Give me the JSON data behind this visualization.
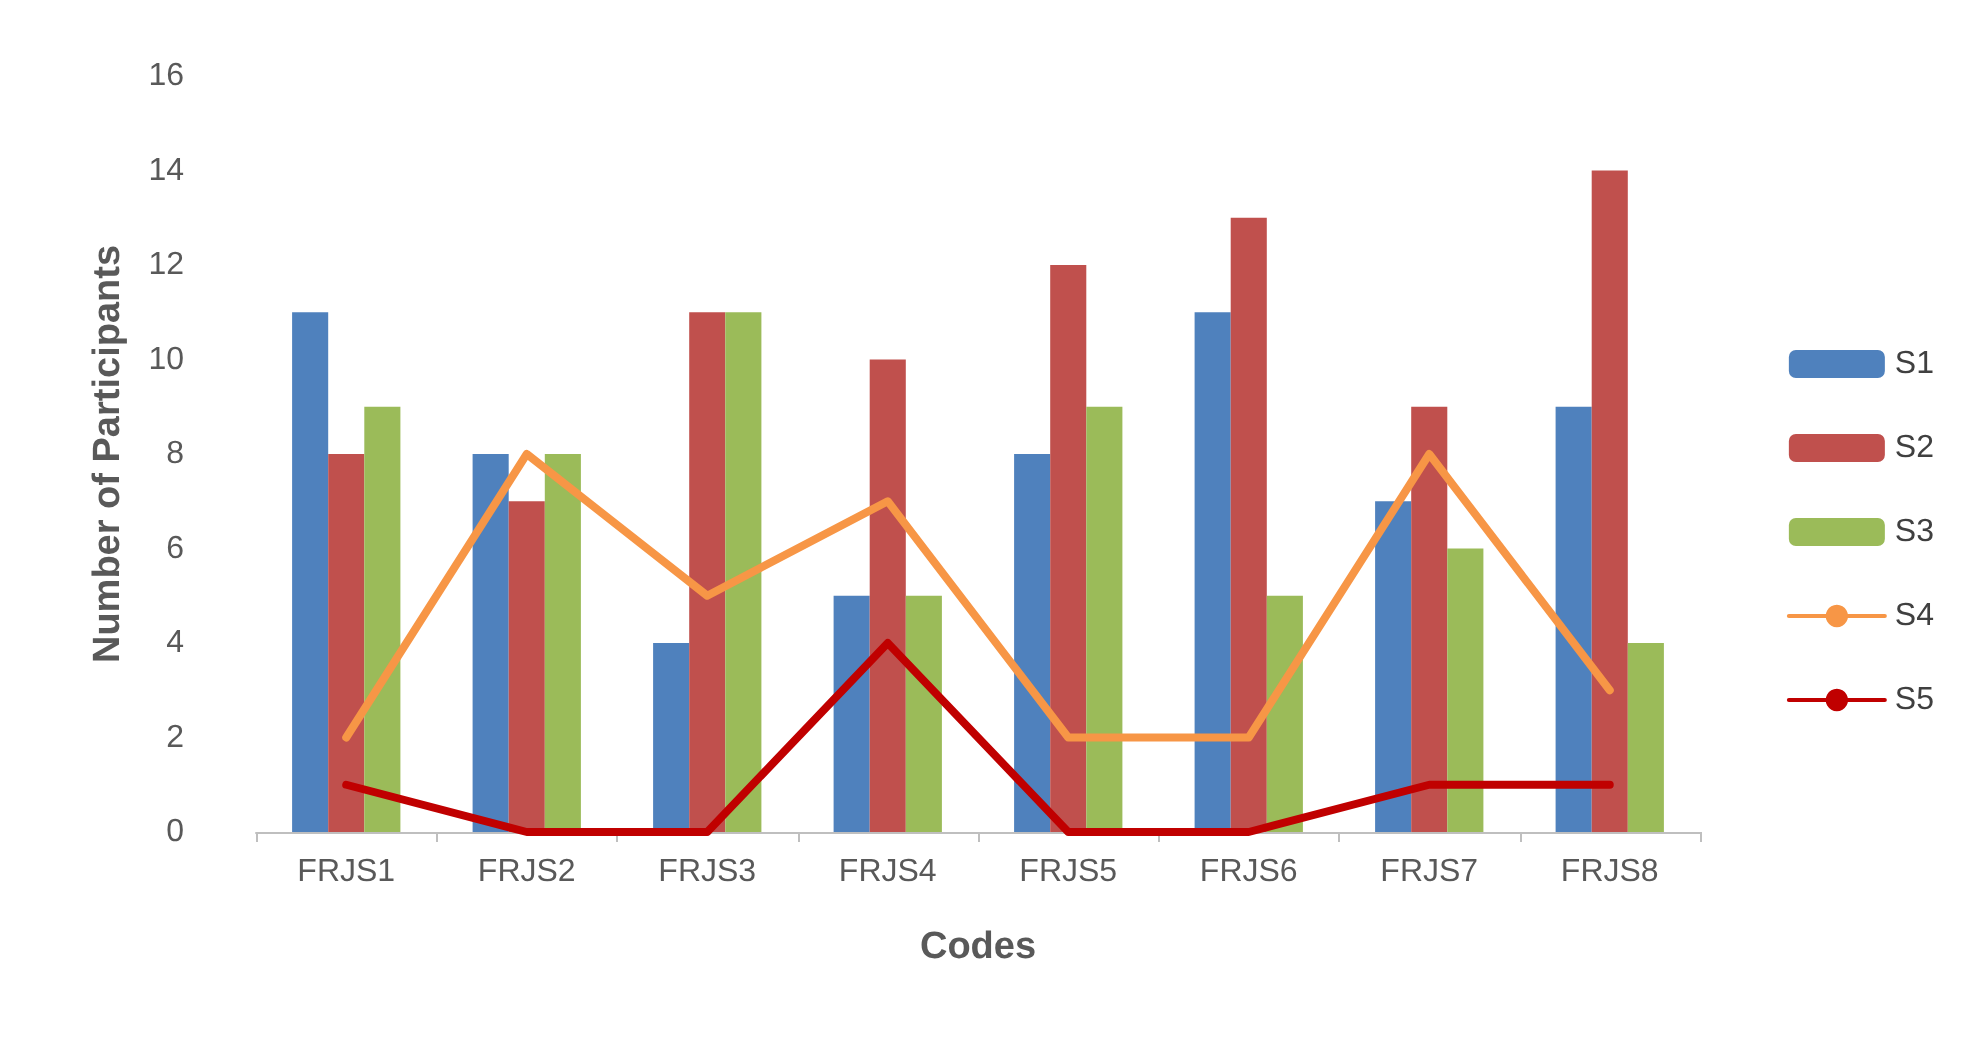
{
  "chart_data": {
    "type": "bar",
    "xlabel": "Codes",
    "ylabel": "Number of Participants",
    "categories": [
      "FRJS1",
      "FRJS2",
      "FRJS3",
      "FRJS4",
      "FRJS5",
      "FRJS6",
      "FRJS7",
      "FRJS8"
    ],
    "series": [
      {
        "name": "S1",
        "color": "#4f81bd",
        "values": [
          11,
          8,
          4,
          5,
          8,
          11,
          7,
          9
        ]
      },
      {
        "name": "S2",
        "color": "#c0504d",
        "values": [
          8,
          7,
          11,
          10,
          12,
          13,
          9,
          14
        ]
      },
      {
        "name": "S3",
        "color": "#9bbb59",
        "values": [
          9,
          8,
          11,
          5,
          9,
          5,
          6,
          4
        ]
      },
      {
        "name": "S4",
        "type": "line",
        "color": "#f79646",
        "values": [
          2,
          8,
          5,
          7,
          2,
          2,
          8,
          3
        ]
      },
      {
        "name": "S5",
        "type": "line",
        "color": "#c00000",
        "values": [
          1,
          0,
          0,
          4,
          0,
          0,
          1,
          1
        ]
      }
    ],
    "ylim": [
      0,
      16
    ],
    "yticks": [
      0,
      2,
      4,
      6,
      8,
      10,
      12,
      14,
      16
    ],
    "grid": false,
    "legend": "right"
  }
}
